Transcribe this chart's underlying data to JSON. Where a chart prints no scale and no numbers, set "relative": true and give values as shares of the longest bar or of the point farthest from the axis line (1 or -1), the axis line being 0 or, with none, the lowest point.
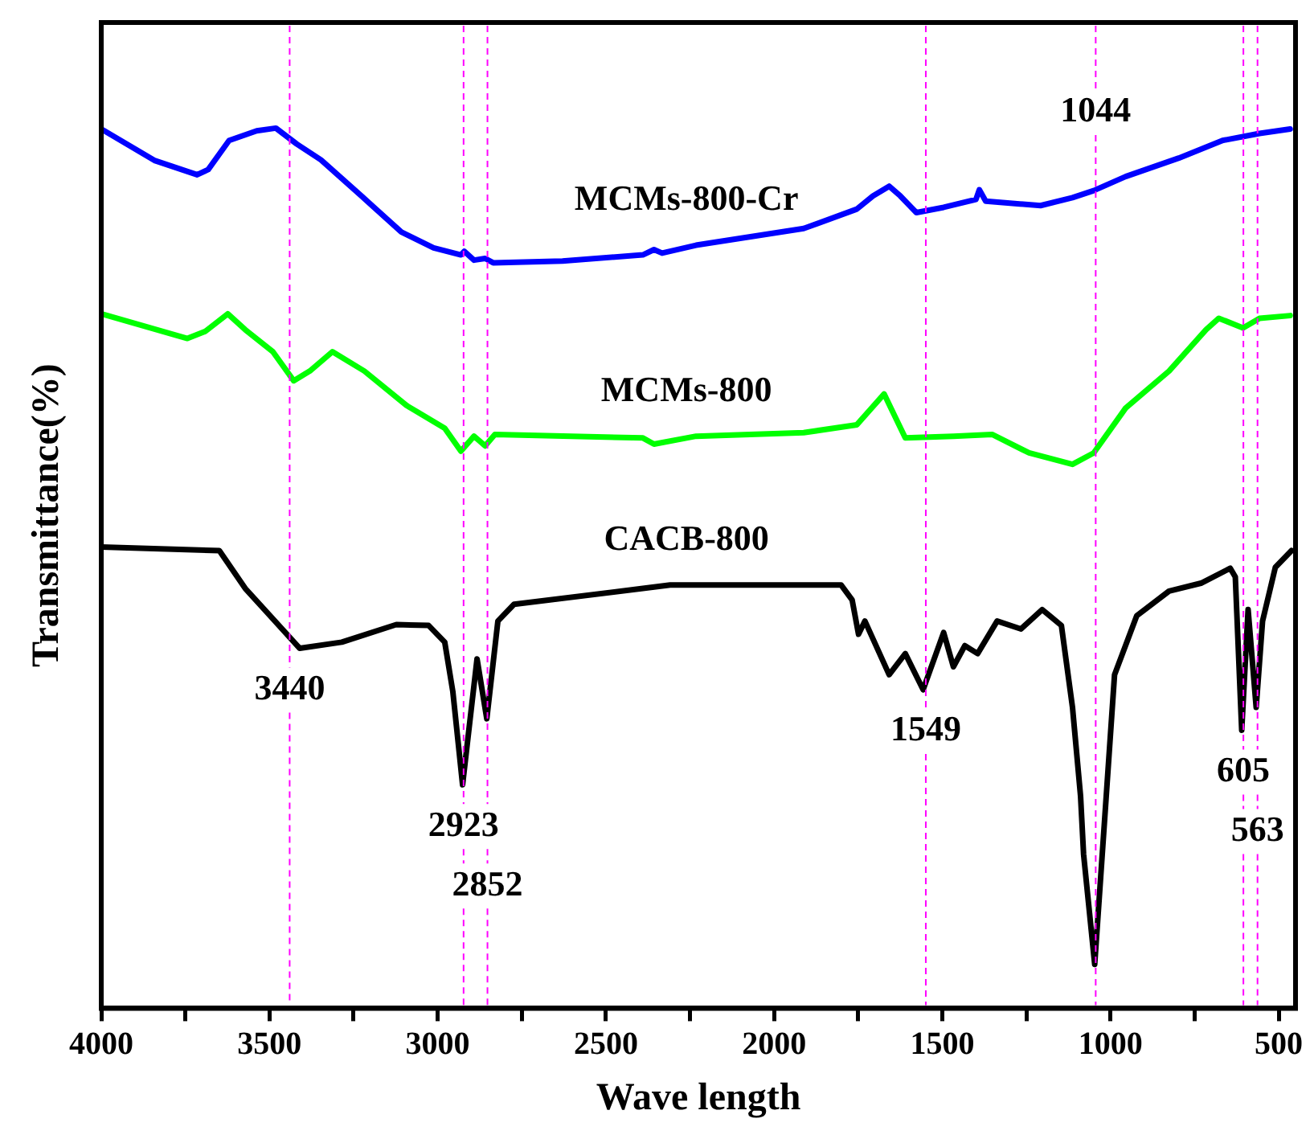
{
  "chart_data": {
    "type": "line",
    "relative": true,
    "xlabel": "Wave length",
    "ylabel": "Transmittance(%)",
    "xlim": [
      4000,
      450
    ],
    "xticks": [
      4000,
      {
        "value": 3750,
        "label": null
      },
      3500,
      {
        "value": 3250,
        "label": null
      },
      3000,
      {
        "value": 2750,
        "label": null
      },
      2500,
      {
        "value": 2250,
        "label": null
      },
      2000,
      {
        "value": 1750,
        "label": null
      },
      1500,
      {
        "value": 1250,
        "label": null
      },
      1000,
      {
        "value": 750,
        "label": null
      },
      500
    ],
    "series": [
      {
        "name": "MCMs-800-Cr",
        "color": "#0000ff",
        "x": [
          4000,
          3840,
          3715,
          3682,
          3620,
          3538,
          3481,
          3419,
          3347,
          3227,
          3108,
          3012,
          2931,
          2921,
          2892,
          2859,
          2835,
          2629,
          2390,
          2357,
          2333,
          2232,
          1912,
          1754,
          1706,
          1658,
          1625,
          1577,
          1496,
          1400,
          1390,
          1371,
          1208,
          1113,
          1050,
          955,
          797,
          667,
          557,
          466
        ],
        "values": [
          0.999,
          0.963,
          0.947,
          0.953,
          0.986,
          0.997,
          1,
          0.982,
          0.964,
          0.923,
          0.882,
          0.864,
          0.856,
          0.86,
          0.85,
          0.852,
          0.847,
          0.849,
          0.856,
          0.862,
          0.858,
          0.867,
          0.886,
          0.908,
          0.923,
          0.934,
          0.923,
          0.904,
          0.91,
          0.919,
          0.93,
          0.917,
          0.912,
          0.921,
          0.929,
          0.945,
          0.966,
          0.986,
          0.994,
          0.999
        ]
      },
      {
        "name": "MCMs-800",
        "color": "#00ff00",
        "x": [
          4000,
          3744,
          3691,
          3624,
          3572,
          3490,
          3428,
          3380,
          3313,
          3218,
          3093,
          2979,
          2931,
          2892,
          2859,
          2830,
          2390,
          2357,
          2232,
          1912,
          1754,
          1673,
          1610,
          1467,
          1352,
          1242,
          1113,
          1050,
          955,
          826,
          716,
          678,
          606,
          557,
          466
        ],
        "values": [
          0.789,
          0.761,
          0.769,
          0.789,
          0.771,
          0.746,
          0.713,
          0.724,
          0.746,
          0.724,
          0.685,
          0.659,
          0.633,
          0.65,
          0.639,
          0.652,
          0.648,
          0.641,
          0.65,
          0.654,
          0.663,
          0.698,
          0.648,
          0.65,
          0.652,
          0.631,
          0.618,
          0.631,
          0.682,
          0.724,
          0.771,
          0.784,
          0.773,
          0.784,
          0.787
        ]
      },
      {
        "name": "CACB-800",
        "color": "#000000",
        "x": [
          4000,
          3649,
          3572,
          3410,
          3285,
          3123,
          3027,
          2979,
          2955,
          2926,
          2883,
          2854,
          2821,
          2773,
          2390,
          2309,
          1801,
          1768,
          1749,
          1730,
          1658,
          1610,
          1557,
          1496,
          1467,
          1433,
          1395,
          1337,
          1266,
          1203,
          1146,
          1113,
          1089,
          1080,
          1047,
          1017,
          988,
          922,
          826,
          731,
          644,
          629,
          610,
          591,
          567,
          548,
          510,
          462
        ],
        "values": [
          0.524,
          0.52,
          0.477,
          0.409,
          0.416,
          0.436,
          0.435,
          0.416,
          0.36,
          0.254,
          0.397,
          0.329,
          0.44,
          0.459,
          0.477,
          0.481,
          0.481,
          0.464,
          0.425,
          0.44,
          0.379,
          0.403,
          0.362,
          0.427,
          0.388,
          0.412,
          0.403,
          0.44,
          0.431,
          0.453,
          0.435,
          0.342,
          0.241,
          0.175,
          0.05,
          0.217,
          0.379,
          0.446,
          0.474,
          0.483,
          0.5,
          0.49,
          0.316,
          0.453,
          0.342,
          0.44,
          0.501,
          0.52
        ]
      }
    ],
    "ref_lines": [
      {
        "axis": "x",
        "value": 3440,
        "label": "3440",
        "color": "#ff00ff",
        "line_style": "dashed"
      },
      {
        "axis": "x",
        "value": 2923,
        "label": "2923",
        "color": "#ff00ff",
        "line_style": "dashed"
      },
      {
        "axis": "x",
        "value": 2852,
        "label": "2852",
        "color": "#ff00ff",
        "line_style": "dashed"
      },
      {
        "axis": "x",
        "value": 1549,
        "label": "1549",
        "color": "#ff00ff",
        "line_style": "dashed"
      },
      {
        "axis": "x",
        "value": 1044,
        "label": "1044",
        "color": "#ff00ff",
        "line_style": "dashed"
      },
      {
        "axis": "x",
        "value": 605,
        "label": "605",
        "color": "#ff00ff",
        "line_style": "dashed"
      },
      {
        "axis": "x",
        "value": 563,
        "label": "563",
        "color": "#ff00ff",
        "line_style": "dashed"
      }
    ]
  }
}
